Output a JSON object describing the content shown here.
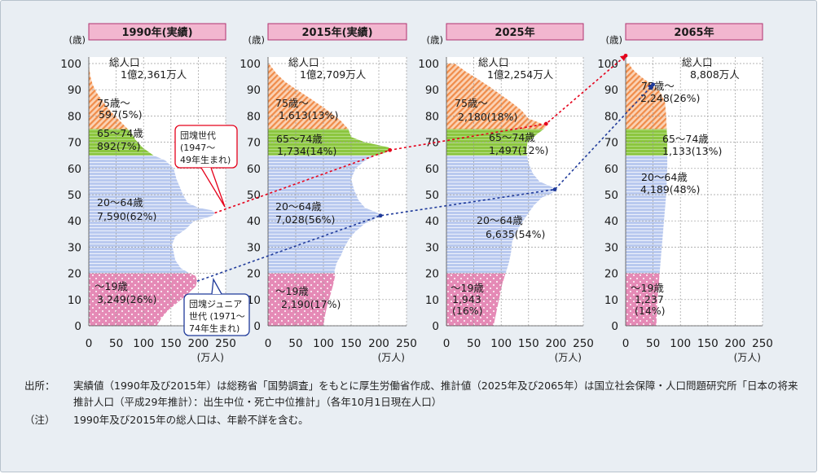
{
  "colors": {
    "age_0_19": "#e58ab6",
    "age_20_64": "#b9c9ef",
    "age_65_74": "#8cc63f",
    "age_75_plus": "#f08c4a",
    "arrow_dankai": "#e5001a",
    "arrow_junior": "#1f3a9a",
    "header_fill": "#f2b6cf",
    "header_border": "#b0336f"
  },
  "axis_units": {
    "y": "(歳)",
    "x": "(万人)"
  },
  "chart_data": [
    {
      "type": "area",
      "title": "1990年(実績)",
      "xlim": [
        0,
        250
      ],
      "ylim": [
        0,
        100
      ],
      "x_ticks": [
        "0",
        "50",
        "100",
        "150",
        "200",
        "250"
      ],
      "y_ticks": [
        "0",
        "10",
        "20",
        "30",
        "40",
        "50",
        "60",
        "70",
        "80",
        "90",
        "100"
      ],
      "total_label": "総人口",
      "total_value": "1億2,361万人",
      "profile": [
        [
          0,
          124
        ],
        [
          3,
          133
        ],
        [
          6,
          145
        ],
        [
          9,
          163
        ],
        [
          12,
          180
        ],
        [
          15,
          195
        ],
        [
          17,
          198
        ],
        [
          19,
          195
        ],
        [
          20,
          184
        ],
        [
          22,
          168
        ],
        [
          25,
          158
        ],
        [
          28,
          155
        ],
        [
          31,
          152
        ],
        [
          34,
          158
        ],
        [
          37,
          178
        ],
        [
          40,
          192
        ],
        [
          41,
          212
        ],
        [
          42,
          226
        ],
        [
          43,
          230
        ],
        [
          44,
          225
        ],
        [
          45,
          200
        ],
        [
          47,
          180
        ],
        [
          50,
          172
        ],
        [
          53,
          166
        ],
        [
          56,
          160
        ],
        [
          60,
          155
        ],
        [
          63,
          140
        ],
        [
          65,
          118
        ],
        [
          68,
          98
        ],
        [
          71,
          85
        ],
        [
          74,
          76
        ],
        [
          77,
          62
        ],
        [
          80,
          48
        ],
        [
          83,
          35
        ],
        [
          86,
          24
        ],
        [
          89,
          14
        ],
        [
          92,
          7
        ],
        [
          95,
          3
        ],
        [
          98,
          1
        ],
        [
          100,
          0
        ]
      ],
      "groups": [
        {
          "name": "～19歳",
          "value": "3,249(26%)"
        },
        {
          "name": "20～64歳",
          "value": "7,590(62%)"
        },
        {
          "name": "65～74歳",
          "value": "892(7%)"
        },
        {
          "name": "75歳～",
          "value": "597(5%)"
        }
      ]
    },
    {
      "type": "area",
      "title": "2015年(実績)",
      "xlim": [
        0,
        250
      ],
      "ylim": [
        0,
        100
      ],
      "x_ticks": [
        "0",
        "50",
        "100",
        "150",
        "200",
        "250"
      ],
      "y_ticks": [
        "0",
        "10",
        "20",
        "30",
        "40",
        "50",
        "60",
        "70",
        "80",
        "90",
        "100"
      ],
      "total_label": "総人口",
      "total_value": "1億2,709万人",
      "profile": [
        [
          0,
          100
        ],
        [
          4,
          103
        ],
        [
          8,
          107
        ],
        [
          12,
          113
        ],
        [
          16,
          118
        ],
        [
          19,
          121
        ],
        [
          21,
          120
        ],
        [
          24,
          124
        ],
        [
          27,
          132
        ],
        [
          30,
          138
        ],
        [
          33,
          146
        ],
        [
          36,
          158
        ],
        [
          39,
          175
        ],
        [
          41,
          195
        ],
        [
          42,
          203
        ],
        [
          43,
          198
        ],
        [
          45,
          175
        ],
        [
          48,
          163
        ],
        [
          52,
          155
        ],
        [
          56,
          150
        ],
        [
          60,
          158
        ],
        [
          63,
          175
        ],
        [
          65,
          196
        ],
        [
          66,
          212
        ],
        [
          67,
          220
        ],
        [
          68,
          218
        ],
        [
          70,
          175
        ],
        [
          72,
          150
        ],
        [
          75,
          145
        ],
        [
          78,
          132
        ],
        [
          81,
          115
        ],
        [
          84,
          95
        ],
        [
          87,
          74
        ],
        [
          90,
          52
        ],
        [
          93,
          31
        ],
        [
          96,
          16
        ],
        [
          99,
          5
        ],
        [
          100,
          2
        ]
      ],
      "groups": [
        {
          "name": "～19歳",
          "value": "2,190(17%)"
        },
        {
          "name": "20～64歳",
          "value": "7,028(56%)"
        },
        {
          "name": "65～74歳",
          "value": "1,734(14%)"
        },
        {
          "name": "75歳～",
          "value": "1,613(13%)"
        }
      ]
    },
    {
      "type": "area",
      "title": "2025年",
      "xlim": [
        0,
        250
      ],
      "ylim": [
        0,
        100
      ],
      "x_ticks": [
        "0",
        "50",
        "100",
        "150",
        "200",
        "250"
      ],
      "y_ticks": [
        "0",
        "10",
        "20",
        "30",
        "40",
        "50",
        "60",
        "70",
        "80",
        "90",
        "100"
      ],
      "total_label": "総人口",
      "total_value": "1億2,254万人",
      "profile": [
        [
          0,
          86
        ],
        [
          4,
          90
        ],
        [
          8,
          94
        ],
        [
          12,
          98
        ],
        [
          16,
          102
        ],
        [
          20,
          108
        ],
        [
          24,
          114
        ],
        [
          28,
          118
        ],
        [
          32,
          120
        ],
        [
          36,
          128
        ],
        [
          40,
          140
        ],
        [
          43,
          150
        ],
        [
          46,
          160
        ],
        [
          49,
          175
        ],
        [
          50,
          188
        ],
        [
          51,
          196
        ],
        [
          52,
          198
        ],
        [
          53,
          192
        ],
        [
          55,
          170
        ],
        [
          58,
          158
        ],
        [
          62,
          150
        ],
        [
          66,
          146
        ],
        [
          70,
          148
        ],
        [
          73,
          165
        ],
        [
          75,
          178
        ],
        [
          76,
          182
        ],
        [
          77,
          175
        ],
        [
          79,
          150
        ],
        [
          82,
          138
        ],
        [
          85,
          120
        ],
        [
          88,
          100
        ],
        [
          91,
          80
        ],
        [
          94,
          58
        ],
        [
          97,
          35
        ],
        [
          100,
          15
        ]
      ],
      "groups": [
        {
          "name": "～19歳",
          "value": "1,943\n(16%)"
        },
        {
          "name": "20～64歳",
          "value": "6,635(54%)"
        },
        {
          "name": "65～74歳",
          "value": "1,497(12%)"
        },
        {
          "name": "75歳～",
          "value": "2,180(18%)"
        }
      ]
    },
    {
      "type": "area",
      "title": "2065年",
      "xlim": [
        0,
        250
      ],
      "ylim": [
        0,
        100
      ],
      "x_ticks": [
        "0",
        "50",
        "100",
        "150",
        "200",
        "250"
      ],
      "y_ticks": [
        "0",
        "10",
        "20",
        "30",
        "40",
        "50",
        "60",
        "70",
        "80",
        "90",
        "100"
      ],
      "total_label": "総人口",
      "total_value": "8,808万人",
      "profile": [
        [
          0,
          56
        ],
        [
          10,
          58
        ],
        [
          20,
          62
        ],
        [
          30,
          66
        ],
        [
          40,
          70
        ],
        [
          50,
          74
        ],
        [
          60,
          76
        ],
        [
          70,
          76
        ],
        [
          80,
          74
        ],
        [
          85,
          72
        ],
        [
          88,
          66
        ],
        [
          90,
          60
        ],
        [
          92,
          48
        ],
        [
          94,
          34
        ],
        [
          96,
          22
        ],
        [
          98,
          12
        ],
        [
          100,
          6
        ]
      ],
      "groups": [
        {
          "name": "～19歳",
          "value": "1,237\n(14%)"
        },
        {
          "name": "20～64歳",
          "value": "4,189(48%)"
        },
        {
          "name": "65～74歳",
          "value": "1,133(13%)"
        },
        {
          "name": "75歳～",
          "value": "2,248(26%)"
        }
      ]
    }
  ],
  "callouts": [
    {
      "text": "団塊世代\n(1947～\n49年生まれ)"
    },
    {
      "text": "団塊ジュニア\n世代 (1971～\n74年生まれ)"
    }
  ],
  "notes": {
    "source_label": "出所：",
    "source_text": "実績値（1990年及び2015年）は総務省「国勢調査」をもとに厚生労働省作成、推計値（2025年及び2065年）は国立社会保障・人口問題研究所「日本の将来推計人口（平成29年推計）：出生中位・死亡中位推計」（各年10月1日現在人口）",
    "note_label": "（注）",
    "note_text": "1990年及び2015年の総人口は、年齢不詳を含む。"
  }
}
